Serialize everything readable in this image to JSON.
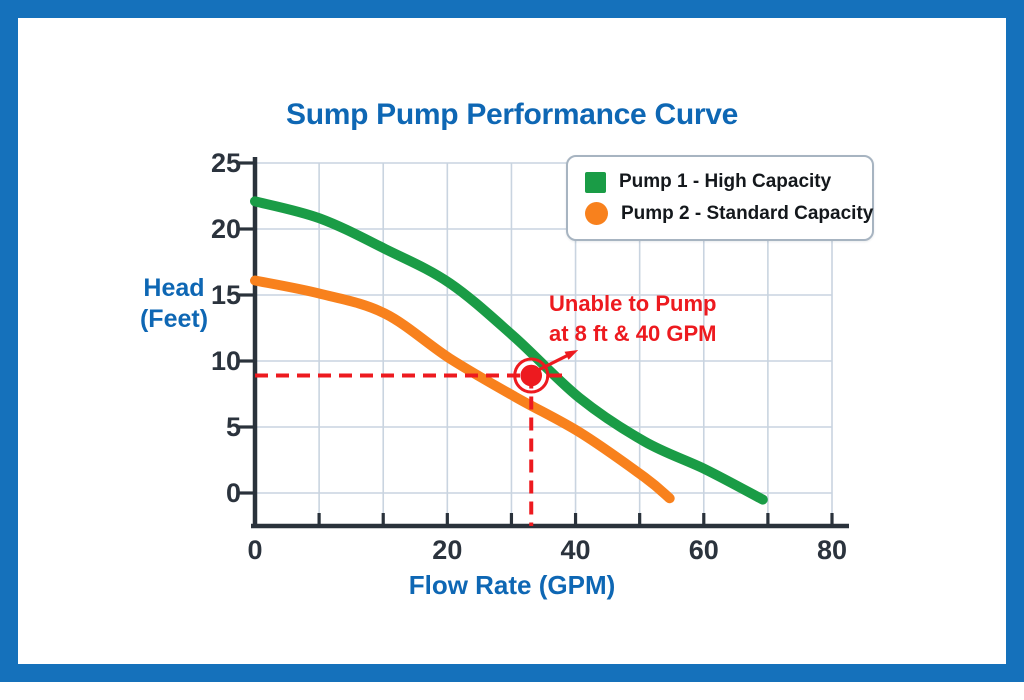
{
  "page": {
    "frame_color": "#1571bb",
    "background_color": "#ffffff"
  },
  "chart_data": {
    "type": "line",
    "title": "Sump Pump Performance Curve",
    "xlabel": "Flow Rate (GPM)",
    "ylabel": "Head (Feet)",
    "ylabel_lines": [
      "Head",
      "(Feet)"
    ],
    "xlim": [
      0,
      80
    ],
    "ylim": [
      0,
      25
    ],
    "x_ticks": [
      0,
      20,
      40,
      60,
      80
    ],
    "y_ticks": [
      0,
      5,
      10,
      15,
      20,
      25
    ],
    "grid": true,
    "legend_position": "top-right",
    "colors": {
      "title": "#0e67b4",
      "axis_labels": "#0e67b4",
      "axis": "#2a323b",
      "gridlines": "#c9d4e0",
      "tick_labels": "#2b333d",
      "annotation": "#ed1a1f"
    },
    "series": [
      {
        "name": "Pump 1 - High Capacity",
        "color": "#1a9c46",
        "swatch": "square",
        "points": [
          [
            0,
            22.1
          ],
          [
            9,
            20.8
          ],
          [
            18,
            18.5
          ],
          [
            27,
            15.9
          ],
          [
            36,
            11.8
          ],
          [
            45,
            7.2
          ],
          [
            54,
            3.9
          ],
          [
            62.4,
            1.8
          ],
          [
            70.4,
            -0.5
          ]
        ]
      },
      {
        "name": "Pump 2 - Standard Capacity",
        "color": "#f8811d",
        "swatch": "circle",
        "points": [
          [
            0,
            16.1
          ],
          [
            9,
            15.1
          ],
          [
            18,
            13.6
          ],
          [
            27,
            10.2
          ],
          [
            36,
            7.3
          ],
          [
            45,
            4.6
          ],
          [
            54,
            1.2
          ],
          [
            57.5,
            -0.4
          ]
        ]
      }
    ],
    "annotation": {
      "lines": [
        "Unable to Pump",
        "at 8 ft & 40 GPM"
      ],
      "color": "#ed1a1f",
      "marker_point": {
        "flow_gpm": 38.3,
        "head_feet": 8.9
      },
      "dashed_lines": {
        "horizontal_at_feet": 8.9,
        "horizontal_from_gpm": 0,
        "horizontal_to_gpm": 42.7,
        "vertical_at_gpm": 38.3
      }
    }
  }
}
